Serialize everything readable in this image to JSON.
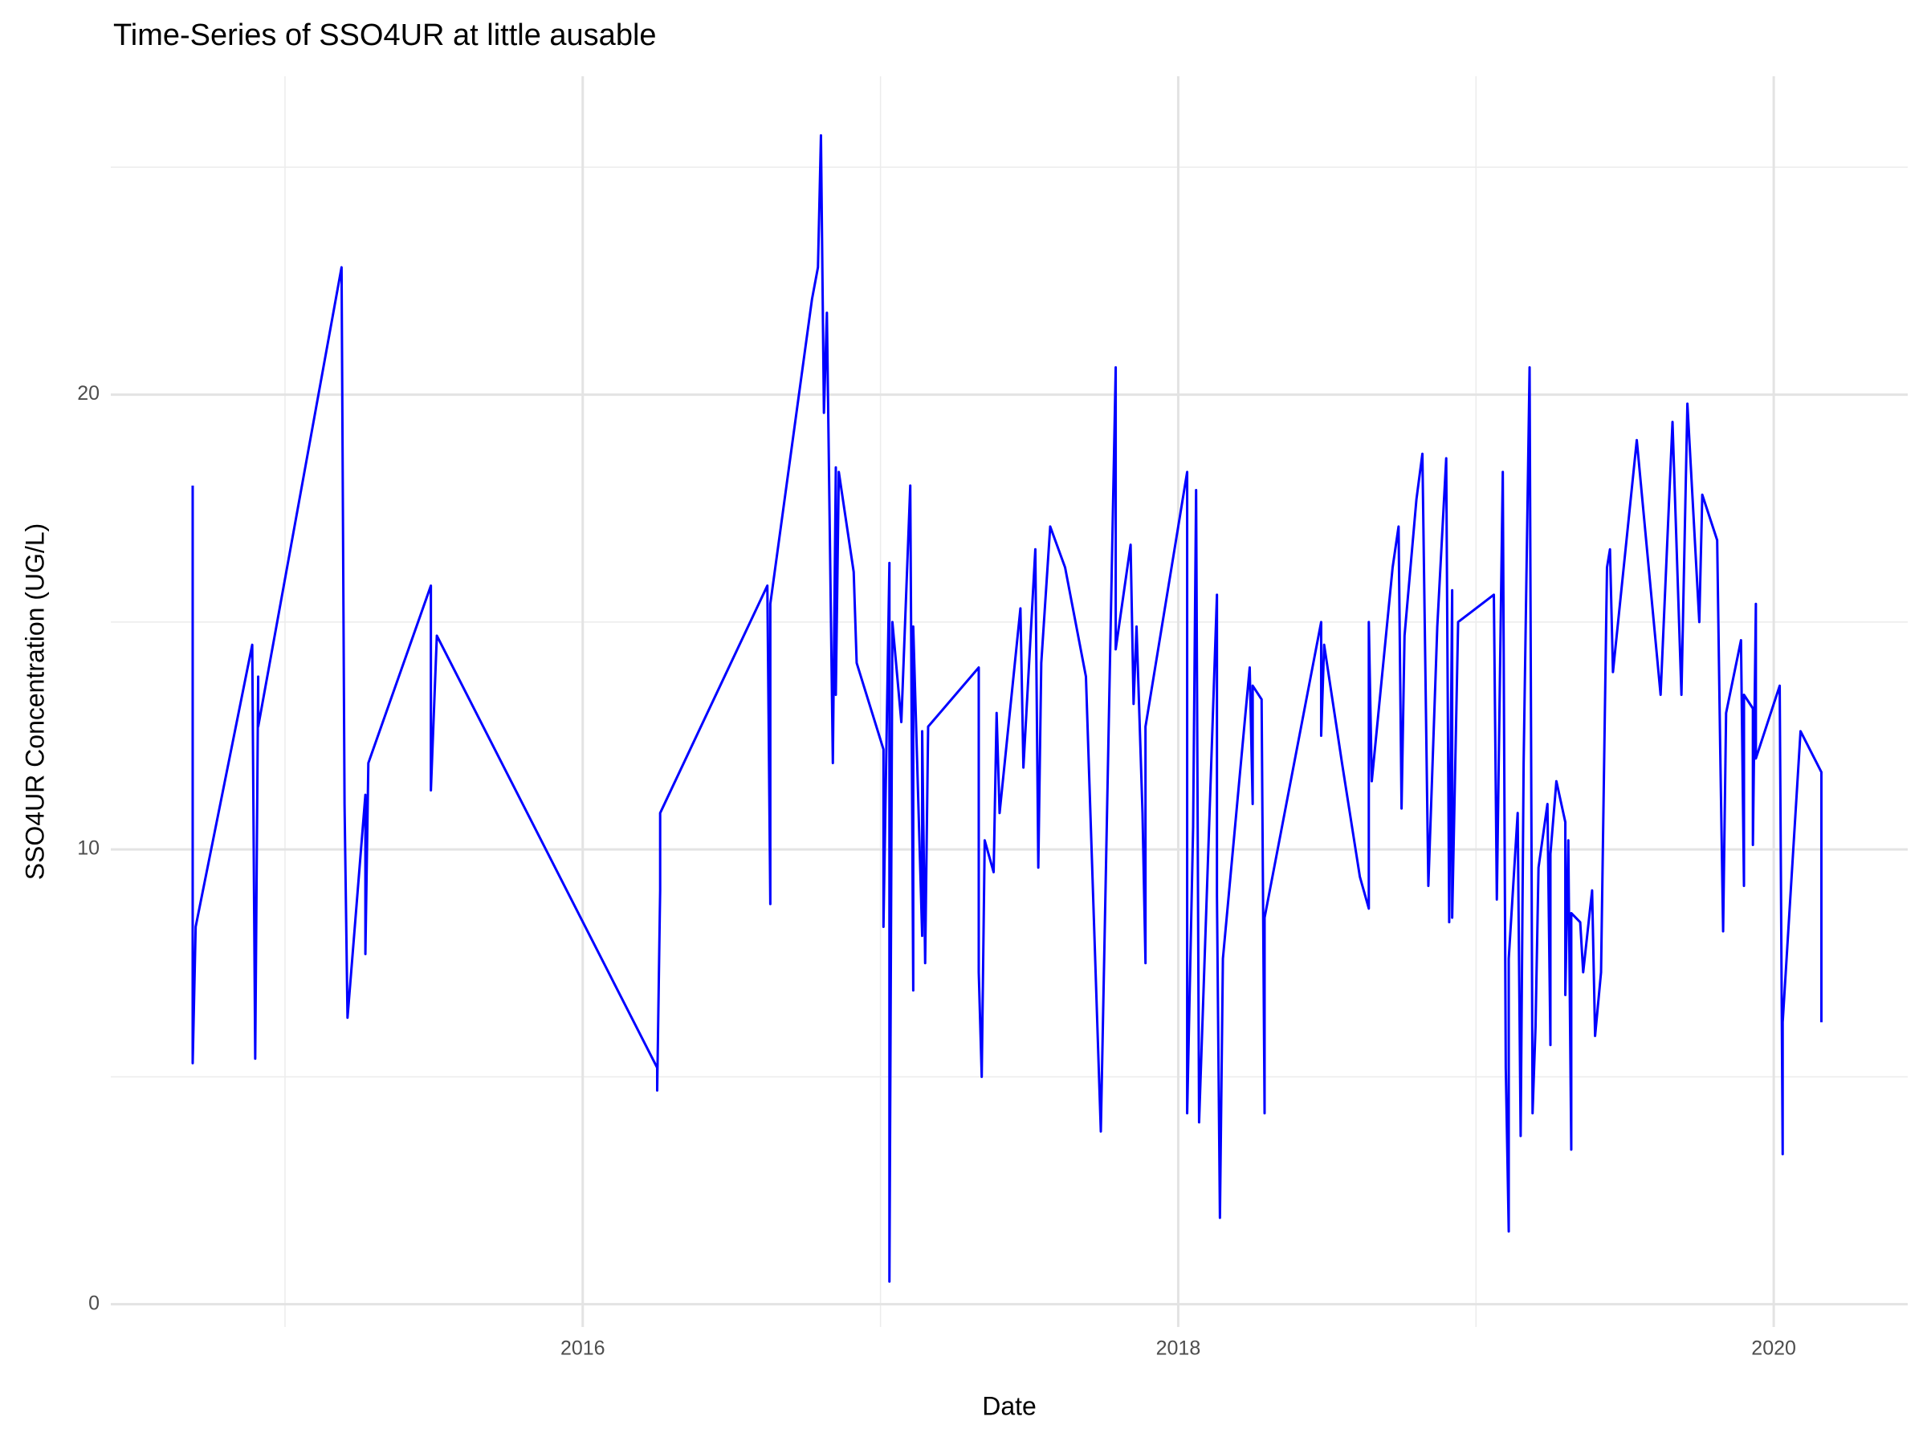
{
  "chart_data": {
    "type": "line",
    "title": "Time-Series of SSO4UR at little ausable",
    "x_label": "Date",
    "y_label": "SSO4UR Concentration (UG/L)",
    "color": "#0000ff",
    "grid": true,
    "xlim": [
      2014.415,
      2020.45
    ],
    "ylim": [
      -0.5,
      27
    ],
    "xticks": [
      2016,
      2018,
      2020
    ],
    "yticks": [
      0,
      10,
      20
    ],
    "minor_xticks": [
      2015,
      2017,
      2019
    ],
    "minor_yticks": [
      5,
      15,
      25
    ],
    "x": [
      2014.69,
      2014.69,
      2014.7,
      2014.89,
      2014.9,
      2014.91,
      2014.91,
      2015.19,
      2015.2,
      2015.21,
      2015.27,
      2015.27,
      2015.28,
      2015.49,
      2015.49,
      2015.51,
      2016.25,
      2016.25,
      2016.26,
      2016.26,
      2016.62,
      2016.63,
      2016.63,
      2016.77,
      2016.79,
      2016.8,
      2016.81,
      2016.82,
      2016.84,
      2016.85,
      2016.85,
      2016.86,
      2016.91,
      2016.92,
      2017.01,
      2017.01,
      2017.03,
      2017.03,
      2017.04,
      2017.07,
      2017.1,
      2017.11,
      2017.11,
      2017.14,
      2017.14,
      2017.15,
      2017.16,
      2017.33,
      2017.33,
      2017.34,
      2017.35,
      2017.38,
      2017.39,
      2017.4,
      2017.47,
      2017.48,
      2017.52,
      2017.53,
      2017.54,
      2017.57,
      2017.62,
      2017.69,
      2017.74,
      2017.79,
      2017.79,
      2017.84,
      2017.85,
      2017.86,
      2017.88,
      2017.89,
      2017.89,
      2018.03,
      2018.03,
      2018.05,
      2018.06,
      2018.07,
      2018.13,
      2018.13,
      2018.14,
      2018.15,
      2018.24,
      2018.25,
      2018.25,
      2018.28,
      2018.29,
      2018.29,
      2018.48,
      2018.48,
      2018.49,
      2018.55,
      2018.61,
      2018.64,
      2018.64,
      2018.65,
      2018.72,
      2018.74,
      2018.75,
      2018.76,
      2018.8,
      2018.82,
      2018.84,
      2018.87,
      2018.9,
      2018.91,
      2018.92,
      2018.92,
      2018.94,
      2019.06,
      2019.07,
      2019.09,
      2019.1,
      2019.11,
      2019.11,
      2019.14,
      2019.15,
      2019.16,
      2019.18,
      2019.19,
      2019.2,
      2019.21,
      2019.24,
      2019.25,
      2019.25,
      2019.27,
      2019.3,
      2019.3,
      2019.31,
      2019.32,
      2019.32,
      2019.35,
      2019.36,
      2019.39,
      2019.4,
      2019.42,
      2019.44,
      2019.45,
      2019.46,
      2019.54,
      2019.62,
      2019.66,
      2019.69,
      2019.71,
      2019.75,
      2019.76,
      2019.81,
      2019.82,
      2019.83,
      2019.84,
      2019.89,
      2019.9,
      2019.9,
      2019.93,
      2019.93,
      2019.94,
      2019.94,
      2020.02,
      2020.03,
      2020.03,
      2020.09,
      2020.16,
      2020.16
    ],
    "values": [
      18.0,
      5.3,
      8.3,
      14.5,
      5.4,
      13.8,
      12.7,
      22.8,
      11.0,
      6.3,
      11.2,
      7.7,
      11.9,
      15.8,
      11.3,
      14.7,
      5.2,
      4.7,
      9.1,
      10.8,
      15.8,
      8.8,
      15.4,
      22.1,
      22.8,
      25.7,
      19.6,
      21.8,
      11.9,
      18.4,
      13.4,
      18.3,
      16.1,
      14.1,
      12.2,
      8.3,
      16.3,
      0.5,
      15.0,
      12.8,
      18.0,
      6.9,
      14.9,
      8.1,
      12.6,
      7.5,
      12.7,
      14.0,
      7.3,
      5.0,
      10.2,
      9.5,
      13.0,
      10.8,
      15.3,
      11.8,
      16.6,
      9.6,
      14.1,
      17.1,
      16.2,
      13.8,
      3.8,
      20.6,
      14.4,
      16.7,
      13.2,
      14.9,
      10.8,
      7.5,
      12.7,
      18.3,
      4.2,
      10.5,
      17.9,
      4.0,
      15.6,
      9.0,
      1.9,
      7.6,
      14.0,
      11.0,
      13.6,
      13.3,
      4.2,
      8.5,
      15.0,
      12.5,
      14.5,
      11.9,
      9.4,
      8.7,
      15.0,
      11.5,
      16.2,
      17.1,
      10.9,
      14.7,
      17.7,
      18.7,
      9.2,
      14.9,
      18.6,
      8.4,
      15.7,
      8.5,
      15.0,
      15.6,
      8.9,
      18.3,
      5.2,
      1.6,
      7.6,
      10.8,
      3.7,
      11.9,
      20.6,
      4.2,
      6.1,
      9.6,
      11.0,
      5.7,
      9.9,
      11.5,
      10.6,
      6.8,
      10.2,
      3.4,
      8.6,
      8.4,
      7.3,
      9.1,
      5.9,
      7.3,
      16.2,
      16.6,
      13.9,
      19.0,
      13.4,
      19.4,
      13.4,
      19.8,
      15.0,
      17.8,
      16.8,
      12.3,
      8.2,
      13.0,
      14.6,
      9.2,
      13.4,
      13.1,
      10.1,
      15.4,
      12.0,
      13.6,
      3.3,
      6.2,
      12.6,
      11.7,
      6.2
    ]
  }
}
